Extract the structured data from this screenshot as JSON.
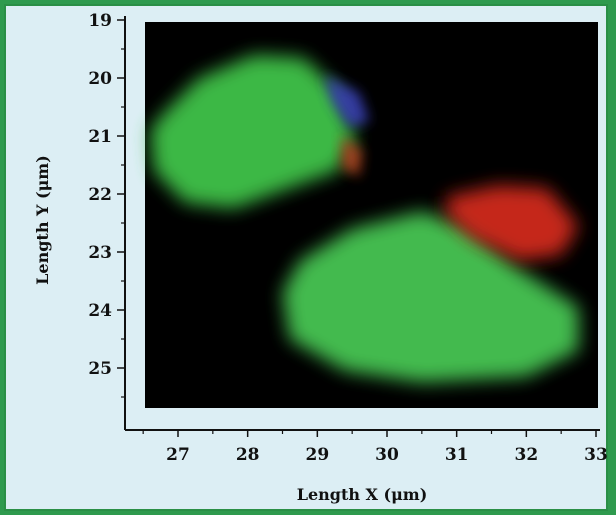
{
  "chart_data": {
    "type": "heatmap",
    "title": "",
    "xlabel": "Length X (μm)",
    "ylabel": "Length Y (μm)",
    "xlim": [
      26.5,
      33
    ],
    "ylim": [
      19,
      25.7
    ],
    "y_inverted": true,
    "x_ticks": [
      27,
      28,
      29,
      30,
      31,
      32,
      33
    ],
    "y_ticks": [
      19,
      20,
      21,
      22,
      23,
      24,
      25
    ],
    "background_color": "#000000",
    "grid": false,
    "legend": "none",
    "regions": [
      {
        "color": "#3fc24a",
        "polygon": [
          [
            26.8,
            20.6
          ],
          [
            27.3,
            20.0
          ],
          [
            28.1,
            19.6
          ],
          [
            28.8,
            19.65
          ],
          [
            29.3,
            20.2
          ],
          [
            29.55,
            21.05
          ],
          [
            29.3,
            21.6
          ],
          [
            28.6,
            21.9
          ],
          [
            27.8,
            22.25
          ],
          [
            27.1,
            22.15
          ],
          [
            26.65,
            21.6
          ],
          [
            26.6,
            20.9
          ]
        ]
      },
      {
        "color": "#47c552",
        "polygon": [
          [
            28.5,
            23.7
          ],
          [
            28.75,
            23.15
          ],
          [
            29.5,
            22.6
          ],
          [
            30.5,
            22.3
          ],
          [
            31.1,
            22.55
          ],
          [
            31.9,
            23.3
          ],
          [
            32.75,
            23.95
          ],
          [
            32.75,
            24.7
          ],
          [
            32.0,
            25.15
          ],
          [
            30.5,
            25.25
          ],
          [
            29.4,
            25.05
          ],
          [
            28.6,
            24.5
          ]
        ]
      },
      {
        "color": "#d0291c",
        "polygon": [
          [
            30.85,
            22.05
          ],
          [
            31.6,
            21.85
          ],
          [
            32.3,
            21.9
          ],
          [
            32.75,
            22.55
          ],
          [
            32.5,
            23.05
          ],
          [
            31.9,
            23.15
          ],
          [
            31.2,
            22.75
          ],
          [
            30.85,
            22.35
          ]
        ]
      },
      {
        "color": "#3b3fb8",
        "polygon": [
          [
            29.1,
            19.95
          ],
          [
            29.6,
            20.25
          ],
          [
            29.75,
            20.75
          ],
          [
            29.45,
            20.85
          ],
          [
            29.2,
            20.4
          ]
        ]
      },
      {
        "color": "#b24520",
        "polygon": [
          [
            29.35,
            21.0
          ],
          [
            29.65,
            21.25
          ],
          [
            29.6,
            21.7
          ],
          [
            29.35,
            21.55
          ]
        ]
      }
    ]
  }
}
